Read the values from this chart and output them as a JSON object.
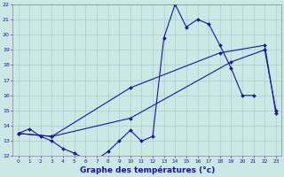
{
  "title": "Graphe des températures (°c)",
  "bg_color": "#cce8e4",
  "grid_color": "#aaccca",
  "line_color": "#1515aa",
  "y_min": 12,
  "y_max": 22,
  "y_ticks": [
    12,
    13,
    14,
    15,
    16,
    17,
    18,
    19,
    20,
    21,
    22
  ],
  "x_labels": [
    "0",
    "1",
    "2",
    "3",
    "4",
    "5",
    "6",
    "7",
    "8",
    "9",
    "10",
    "11",
    "12",
    "13",
    "14",
    "15",
    "16",
    "17",
    "18",
    "19",
    "20",
    "21",
    "22",
    "23"
  ],
  "curve_wavy_x": [
    0,
    1,
    2,
    3,
    4,
    5,
    6,
    7,
    8,
    9,
    10,
    11,
    12,
    13,
    14,
    15,
    16,
    17,
    18,
    19,
    20,
    21
  ],
  "curve_wavy_y": [
    13.5,
    13.8,
    13.3,
    13.0,
    12.5,
    12.2,
    11.8,
    11.8,
    12.3,
    13.0,
    13.7,
    13.0,
    13.3,
    19.8,
    22.0,
    20.5,
    21.0,
    20.7,
    19.3,
    17.8,
    16.0,
    16.0
  ],
  "curve_line1_x": [
    0,
    3,
    10,
    18,
    22,
    23
  ],
  "curve_line1_y": [
    13.5,
    13.3,
    16.5,
    18.8,
    19.3,
    14.8
  ],
  "curve_line2_x": [
    0,
    3,
    10,
    19,
    22,
    23
  ],
  "curve_line2_y": [
    13.5,
    13.3,
    14.5,
    18.2,
    19.0,
    15.0
  ]
}
